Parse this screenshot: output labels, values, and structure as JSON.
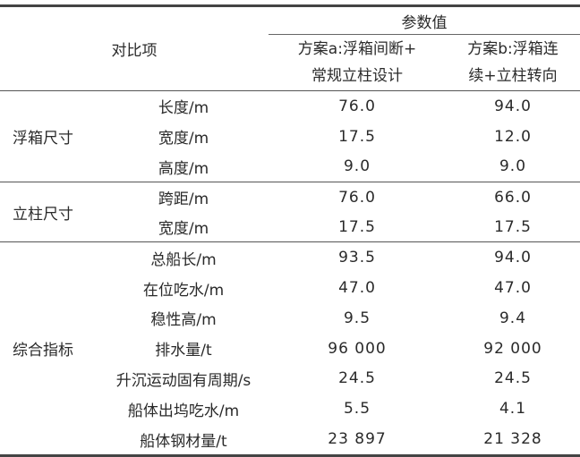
{
  "header": {
    "item_col": "对比项",
    "params": "参数值",
    "scheme_a": [
      "方案a:浮箱间断+",
      "常规立柱设计"
    ],
    "scheme_b": [
      "方案b:浮箱连",
      "续+立柱转向"
    ]
  },
  "groups": [
    {
      "label": "浮箱尺寸",
      "rows": [
        {
          "item": "长度/m",
          "a": "76.0",
          "b": "94.0"
        },
        {
          "item": "宽度/m",
          "a": "17.5",
          "b": "12.0"
        },
        {
          "item": "高度/m",
          "a": "9.0",
          "b": "9.0"
        }
      ]
    },
    {
      "label": "立柱尺寸",
      "rows": [
        {
          "item": "跨距/m",
          "a": "76.0",
          "b": "66.0"
        },
        {
          "item": "宽度/m",
          "a": "17.5",
          "b": "17.5"
        }
      ]
    },
    {
      "label": "综合指标",
      "rows": [
        {
          "item": "总船长/m",
          "a": "93.5",
          "b": "94.0"
        },
        {
          "item": "在位吃水/m",
          "a": "47.0",
          "b": "47.0"
        },
        {
          "item": "稳性高/m",
          "a": "9.5",
          "b": "9.4"
        },
        {
          "item": "排水量/t",
          "a": "96 000",
          "b": "92 000"
        },
        {
          "item": "升沉运动固有周期/s",
          "a": "24.5",
          "b": "24.5"
        },
        {
          "item": "船体出坞吃水/m",
          "a": "5.5",
          "b": "4.1"
        },
        {
          "item": "船体钢材量/t",
          "a": "23 897",
          "b": "21 328"
        }
      ]
    }
  ]
}
